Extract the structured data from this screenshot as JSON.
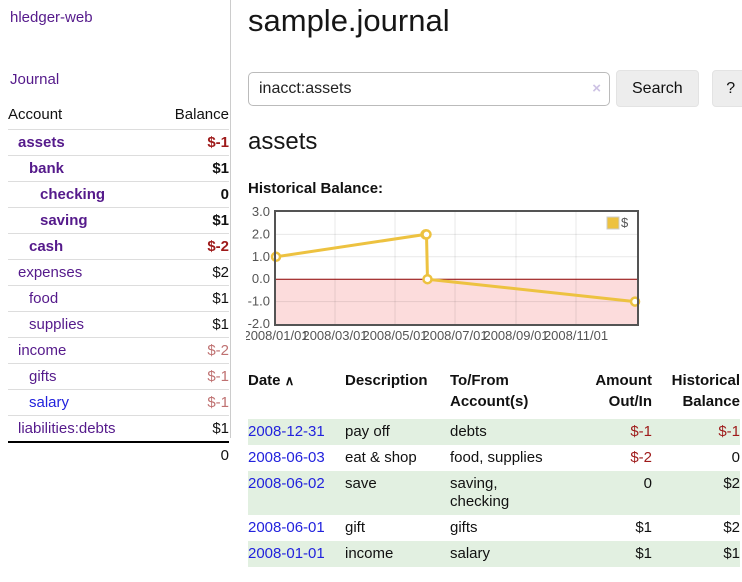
{
  "sidebar": {
    "app_title": "hledger-web",
    "journal_link": "Journal",
    "table": {
      "account_header": "Account",
      "balance_header": "Balance",
      "rows": [
        {
          "name": "assets",
          "depth": 0,
          "balance": "$-1",
          "current": true
        },
        {
          "name": "bank",
          "depth": 1,
          "balance": "$1",
          "current": true
        },
        {
          "name": "checking",
          "depth": 2,
          "balance": "0",
          "current": true
        },
        {
          "name": "saving",
          "depth": 2,
          "balance": "$1",
          "current": true
        },
        {
          "name": "cash",
          "depth": 1,
          "balance": "$-2",
          "current": true
        },
        {
          "name": "expenses",
          "depth": 0,
          "balance": "$2",
          "current": false
        },
        {
          "name": "food",
          "depth": 1,
          "balance": "$1",
          "current": false
        },
        {
          "name": "supplies",
          "depth": 1,
          "balance": "$1",
          "current": false
        },
        {
          "name": "income",
          "depth": 0,
          "balance": "$-2",
          "current": false
        },
        {
          "name": "gifts",
          "depth": 1,
          "balance": "$-1",
          "current": false
        },
        {
          "name": "salary",
          "depth": 1,
          "balance": "$-1",
          "current": false
        },
        {
          "name": "liabilities:debts",
          "depth": 0,
          "balance": "$1",
          "current": false
        }
      ],
      "total": "0"
    }
  },
  "main": {
    "title": "sample.journal",
    "search": {
      "value": "inacct:assets",
      "clear_icon": "×",
      "button_label": "Search",
      "help_label": "?"
    },
    "account_heading": "assets",
    "chart_label": "Historical Balance:"
  },
  "chart_data": {
    "type": "line",
    "title": "Historical Balance:",
    "ylim": [
      -2,
      3
    ],
    "yticks": [
      3,
      2,
      1,
      0,
      -1,
      -2
    ],
    "ytick_labels": [
      "3.0",
      "2.0",
      "1.0",
      "0.0",
      "-1.0",
      "-2.0"
    ],
    "xlim_days": [
      0,
      367
    ],
    "xticks": [
      {
        "day": 0,
        "label": "2008/01/01"
      },
      {
        "day": 60,
        "label": "2008/03/01"
      },
      {
        "day": 121,
        "label": "2008/05/01"
      },
      {
        "day": 182,
        "label": "2008/07/01"
      },
      {
        "day": 244,
        "label": "2008/09/01"
      },
      {
        "day": 305,
        "label": "2008/11/01"
      }
    ],
    "series": [
      {
        "name": "$",
        "color": "#edc240",
        "points": [
          {
            "date": "2008-01-01",
            "day": 0,
            "value": 1
          },
          {
            "date": "2008-06-01",
            "day": 152,
            "value": 2
          },
          {
            "date": "2008-06-02",
            "day": 153,
            "value": 2
          },
          {
            "date": "2008-06-03",
            "day": 154,
            "value": 0
          },
          {
            "date": "2008-12-31",
            "day": 365,
            "value": -1
          }
        ]
      }
    ],
    "legend": [
      {
        "label": "$",
        "color": "#edc240"
      }
    ],
    "legend_position": "top-right",
    "grid": true,
    "negative_region_color": "#fcdcdc",
    "zero_line_color": "#8b0000",
    "border_color": "#545454",
    "tick_text_color": "#545454"
  },
  "register": {
    "headers": {
      "date": "Date",
      "sort_icon": "∧",
      "description": "Description",
      "accounts": "To/From Account(s)",
      "amount": "Amount Out/In",
      "balance": "Historical Balance"
    },
    "rows": [
      {
        "date": "2008-12-31",
        "description": "pay off",
        "accounts": "debts",
        "amount": "$-1",
        "balance": "$-1"
      },
      {
        "date": "2008-06-03",
        "description": "eat & shop",
        "accounts": "food, supplies",
        "amount": "$-2",
        "balance": "0"
      },
      {
        "date": "2008-06-02",
        "description": "save",
        "accounts": "saving, checking",
        "amount": "0",
        "balance": "$2"
      },
      {
        "date": "2008-06-01",
        "description": "gift",
        "accounts": "gifts",
        "amount": "$1",
        "balance": "$2"
      },
      {
        "date": "2008-01-01",
        "description": "income",
        "accounts": "salary",
        "amount": "$1",
        "balance": "$1"
      }
    ]
  },
  "colors": {
    "link_purple": "#551a8b",
    "link_blue": "#2222dd",
    "negative_strong": "#9e1a1a",
    "negative_muted": "#bf7171",
    "row_stripe_green": "#e2f0e1",
    "chart_line_yellow": "#edc240",
    "chart_negative_fill": "#fcdcdc",
    "chart_zero_line": "#8b0000",
    "button_gray": "#ededed"
  }
}
